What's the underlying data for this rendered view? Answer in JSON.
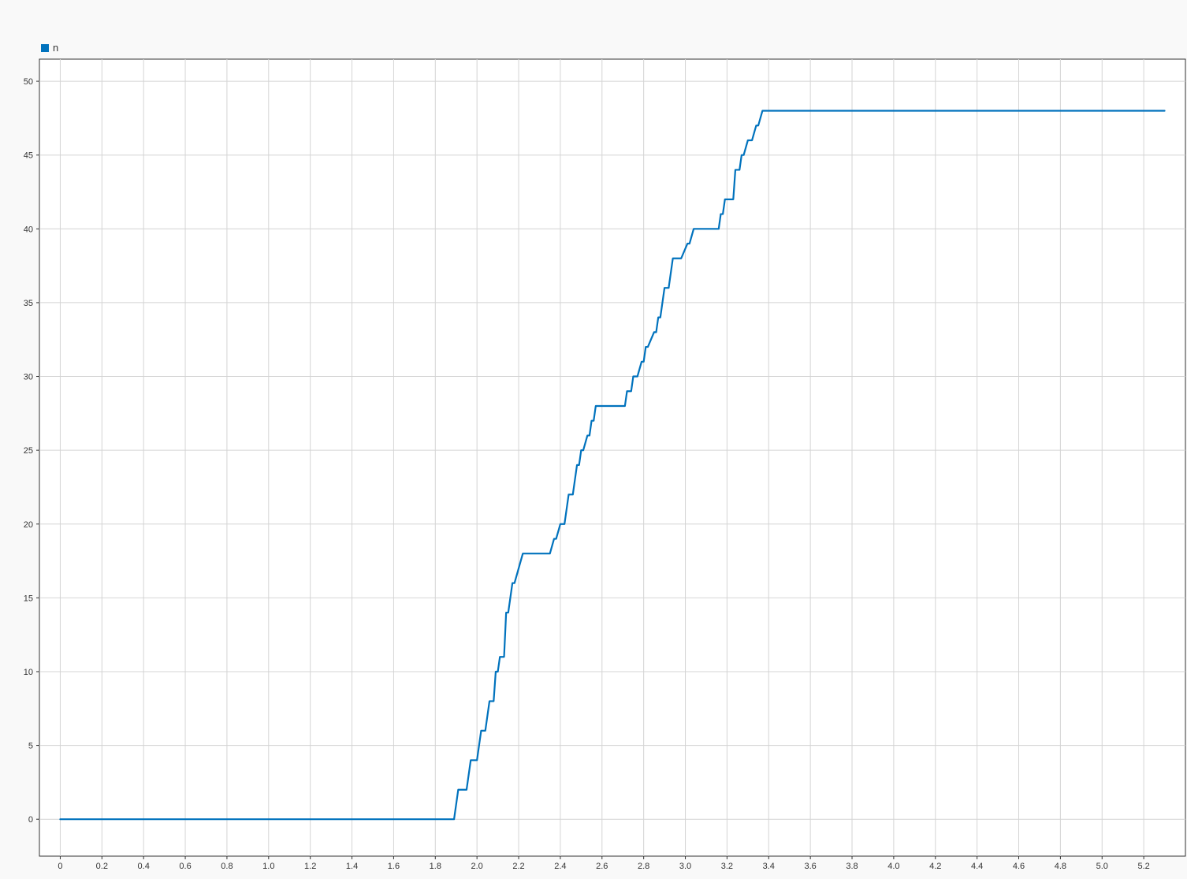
{
  "chart_data": {
    "type": "line",
    "title": "",
    "xlabel": "",
    "ylabel": "",
    "xlim": [
      -0.1,
      5.4
    ],
    "ylim": [
      -2.5,
      51.5
    ],
    "grid": true,
    "legend_position": "top-left",
    "x_ticks": [
      0,
      0.2,
      0.4,
      0.6,
      0.8,
      1.0,
      1.2,
      1.4,
      1.6,
      1.8,
      2.0,
      2.2,
      2.4,
      2.6,
      2.8,
      3.0,
      3.2,
      3.4,
      3.6,
      3.8,
      4.0,
      4.2,
      4.4,
      4.6,
      4.8,
      5.0,
      5.2
    ],
    "x_tick_labels": [
      "0",
      "0.2",
      "0.4",
      "0.6",
      "0.8",
      "1.0",
      "1.2",
      "1.4",
      "1.6",
      "1.8",
      "2.0",
      "2.2",
      "2.4",
      "2.6",
      "2.8",
      "3.0",
      "3.2",
      "3.4",
      "3.6",
      "3.8",
      "4.0",
      "4.2",
      "4.4",
      "4.6",
      "4.8",
      "5.0",
      "5.2"
    ],
    "y_ticks": [
      0,
      5,
      10,
      15,
      20,
      25,
      30,
      35,
      40,
      45,
      50
    ],
    "y_tick_labels": [
      "0",
      "5",
      "10",
      "15",
      "20",
      "25",
      "30",
      "35",
      "40",
      "45",
      "50"
    ],
    "series": [
      {
        "name": "n",
        "color": "#0072bd",
        "x": [
          0,
          1.89,
          1.91,
          1.95,
          1.97,
          2.0,
          2.02,
          2.04,
          2.06,
          2.08,
          2.09,
          2.1,
          2.11,
          2.13,
          2.14,
          2.15,
          2.17,
          2.18,
          2.2,
          2.22,
          2.35,
          2.37,
          2.38,
          2.4,
          2.42,
          2.44,
          2.46,
          2.48,
          2.49,
          2.5,
          2.51,
          2.53,
          2.54,
          2.55,
          2.56,
          2.57,
          2.71,
          2.72,
          2.74,
          2.75,
          2.77,
          2.79,
          2.8,
          2.81,
          2.82,
          2.85,
          2.86,
          2.87,
          2.88,
          2.9,
          2.92,
          2.94,
          2.96,
          2.98,
          3.01,
          3.02,
          3.04,
          3.05,
          3.16,
          3.17,
          3.18,
          3.19,
          3.23,
          3.24,
          3.26,
          3.27,
          3.28,
          3.3,
          3.32,
          3.34,
          3.35,
          3.37,
          5.3
        ],
        "y": [
          0,
          0,
          2,
          2,
          4,
          4,
          6,
          6,
          8,
          8,
          10,
          10,
          11,
          11,
          14,
          14,
          16,
          16,
          17,
          18,
          18,
          19,
          19,
          20,
          20,
          22,
          22,
          24,
          24,
          25,
          25,
          26,
          26,
          27,
          27,
          28,
          28,
          29,
          29,
          30,
          30,
          31,
          31,
          32,
          32,
          33,
          33,
          34,
          34,
          36,
          36,
          38,
          38,
          38,
          39,
          39,
          40,
          40,
          40,
          41,
          41,
          42,
          42,
          44,
          44,
          45,
          45,
          46,
          46,
          47,
          47,
          48,
          48
        ]
      }
    ]
  }
}
